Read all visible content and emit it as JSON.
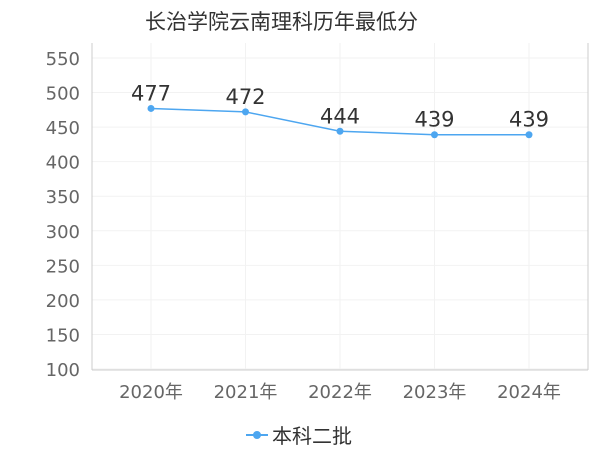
{
  "chart_data": {
    "type": "line",
    "title": "长治学院云南理科历年最低分",
    "categories": [
      "2020年",
      "2021年",
      "2022年",
      "2023年",
      "2024年"
    ],
    "series": [
      {
        "name": "本科二批",
        "values": [
          477,
          472,
          444,
          439,
          439
        ],
        "color": "#4da6f0"
      }
    ],
    "ylim": [
      100,
      550
    ],
    "yticks": [
      100,
      150,
      200,
      250,
      300,
      350,
      400,
      450,
      500,
      550
    ],
    "grid": true,
    "legend_position": "bottom-center"
  }
}
